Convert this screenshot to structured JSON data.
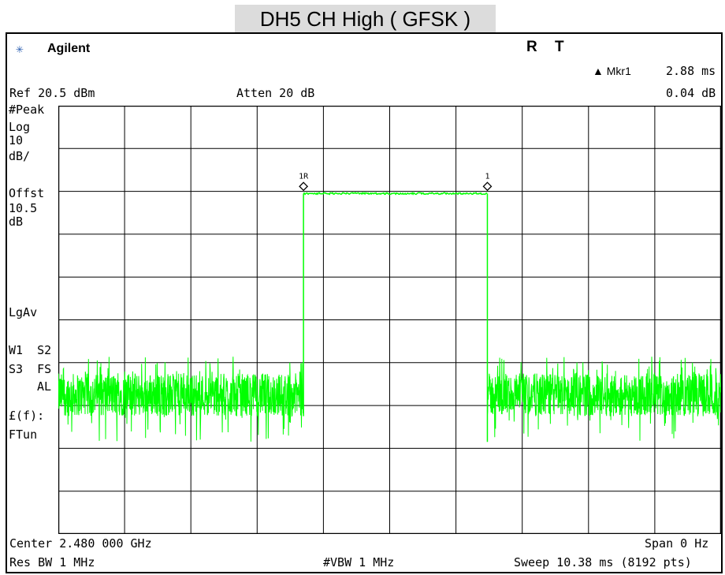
{
  "title": "DH5 CH High ( GFSK )",
  "header": {
    "logo_icon": "agilent-spark-icon",
    "brand": "Agilent",
    "indicator_r": "R",
    "indicator_t": "T",
    "marker_label": "▲ Mkr1",
    "marker_time": "2.88 ms",
    "ref_level": "Ref 20.5 dBm",
    "attenuation": "Atten 20 dB",
    "marker_value": "0.04 dB"
  },
  "left_panel": {
    "detector": "#Peak",
    "scale_type": "Log",
    "scale_value": "10",
    "scale_unit": "dB/",
    "offset_label": "Offst",
    "offset_value": "10.5",
    "offset_unit": "dB",
    "avg_type": "LgAv",
    "w1s2": "W1  S2",
    "s3fs": "S3  FS",
    "al": "AL",
    "ff_label": "£(f):",
    "ftun": "FTun"
  },
  "footer": {
    "center": "Center 2.480 000 GHz",
    "span": "Span 0 Hz",
    "rbw": "Res BW 1 MHz",
    "vbw": "#VBW 1 MHz",
    "sweep": "Sweep 10.38 ms (8192 pts)"
  },
  "colors": {
    "trace": "#00ff00",
    "grid": "#000000",
    "marker": "#000000"
  },
  "chart_data": {
    "type": "line",
    "x_unit": "ms",
    "xlim": [
      0,
      10.38
    ],
    "ylim": [
      -79.5,
      20.5
    ],
    "y_divisions": 10,
    "x_divisions": 10,
    "grid": true,
    "series": [
      {
        "x": [
          0,
          3.84,
          3.84,
          6.72,
          6.72,
          10.38
        ],
        "y": [
          -47,
          -47,
          0.0,
          0.0,
          -47,
          -47
        ]
      }
    ],
    "noise_floor_band_db": [
      -42,
      -52
    ],
    "markers": [
      {
        "label": "1R",
        "x": 3.84,
        "y": 0.0
      },
      {
        "label": "1",
        "x": 6.72,
        "y": 0.04
      }
    ]
  }
}
